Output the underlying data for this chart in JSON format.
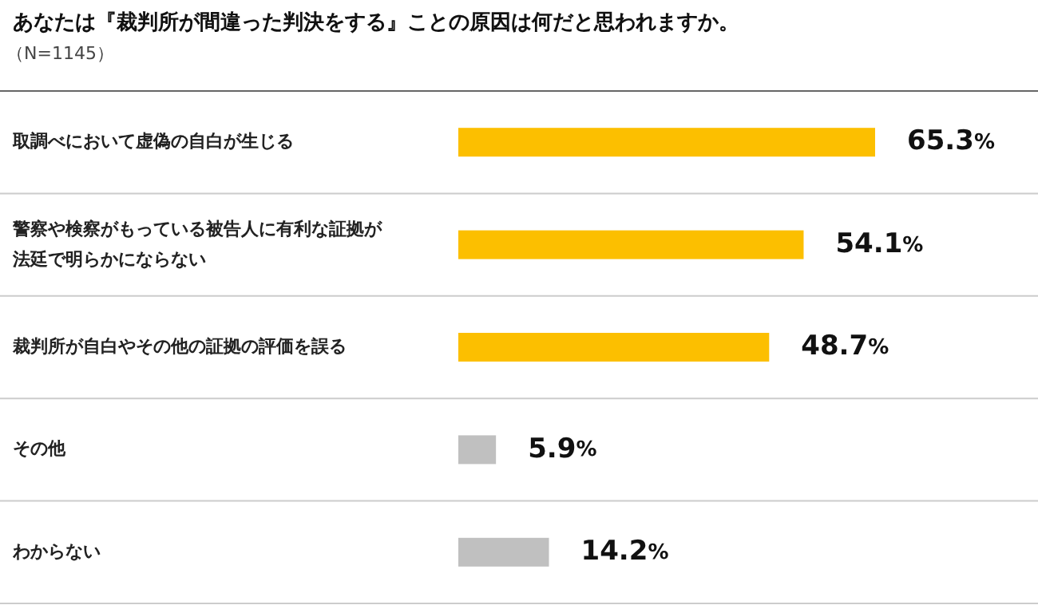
{
  "chart_data": {
    "type": "bar",
    "orientation": "horizontal",
    "title": "あなたは『裁判所が間違った判決をする』ことの原因は何だと思われますか。",
    "subtitle": "（N=1145）",
    "categories": [
      "取調べにおいて虚偽の自白が生じる",
      "警察や検察がもっている被告人に有利な証拠が法廷で明らかにならない",
      "裁判所が自白やその他の証拠の評価を誤る",
      "その他",
      "わからない"
    ],
    "values": [
      65.3,
      54.1,
      48.7,
      5.9,
      14.2
    ],
    "colors": [
      "#fcbf00",
      "#fcbf00",
      "#fcbf00",
      "#c0c0c0",
      "#c0c0c0"
    ],
    "value_labels": [
      "65.3%",
      "54.1%",
      "48.7%",
      "5.9%",
      "14.2%"
    ],
    "grid": "y"
  }
}
